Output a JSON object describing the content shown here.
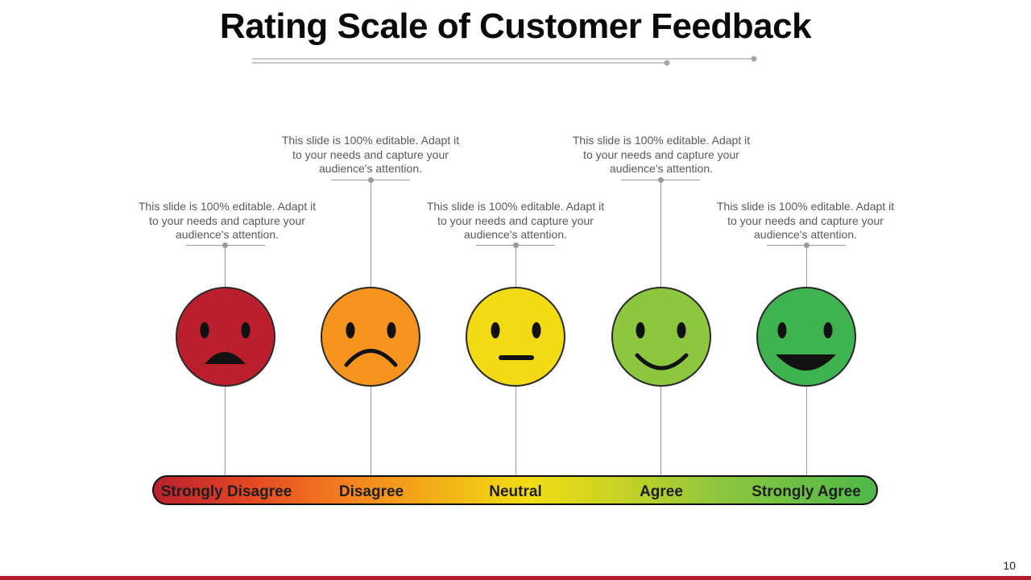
{
  "slide": {
    "title": "Rating Scale of Customer Feedback",
    "page_number": "10"
  },
  "ratings": [
    {
      "label": "Strongly Disagree",
      "caption": "This slide is 100% editable. Adapt it to your needs and capture your audience's attention.",
      "color": "#bb1e2d",
      "expression": "very-sad"
    },
    {
      "label": "Disagree",
      "caption": "This slide is 100% editable. Adapt it to your needs and capture your audience's attention.",
      "color": "#f7941d",
      "expression": "sad"
    },
    {
      "label": "Neutral",
      "caption": "This slide is 100% editable. Adapt it to your needs and capture your audience's attention.",
      "color": "#f2da14",
      "expression": "neutral"
    },
    {
      "label": "Agree",
      "caption": "This slide is 100% editable. Adapt it to your needs and capture your audience's attention.",
      "color": "#8dc63f",
      "expression": "happy"
    },
    {
      "label": "Strongly Agree",
      "caption": "This slide is 100% editable. Adapt it to your needs and capture your audience's attention.",
      "color": "#3fb34f",
      "expression": "very-happy"
    }
  ],
  "colors": {
    "accent": "#b71c2c",
    "connector": "#9a9a9a"
  }
}
